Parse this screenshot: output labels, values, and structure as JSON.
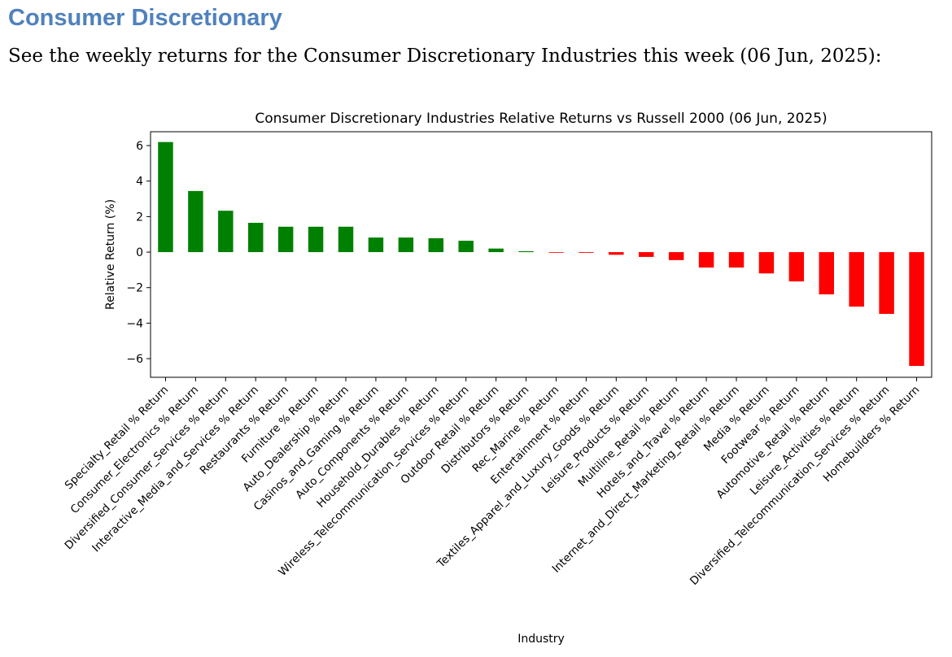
{
  "heading": "Consumer Discretionary",
  "intro": "See the weekly returns for the Consumer Discretionary Industries this week (06 Jun, 2025):",
  "colors": {
    "heading": "#4f81bd",
    "positive": "#008000",
    "negative": "#ff0000"
  },
  "chart_data": {
    "type": "bar",
    "title": "Consumer Discretionary Industries Relative Returns vs Russell 2000 (06 Jun, 2025)",
    "xlabel": "Industry",
    "ylabel": "Relative Return (%)",
    "ylim": [
      -7.05,
      6.78
    ],
    "yticks": [
      -6,
      -4,
      -2,
      0,
      2,
      4,
      6
    ],
    "ytick_labels": [
      "−6",
      "−4",
      "−2",
      "0",
      "2",
      "4",
      "6"
    ],
    "grid": false,
    "categories": [
      "Specialty_Retail % Return",
      "Consumer_Electronics % Return",
      "Diversified_Consumer_Services % Return",
      "Interactive_Media_and_Services % Return",
      "Restaurants % Return",
      "Furniture % Return",
      "Auto_Dealership % Return",
      "Casinos_and_Gaming % Return",
      "Auto_Components % Return",
      "Household_Durables % Return",
      "Wireless_Telecommunication_Services % Return",
      "Outdoor Retail % Return",
      "Distributors % Return",
      "Rec_Marine % Return",
      "Entertainment % Return",
      "Textiles_Apparel_and_Luxury_Goods % Return",
      "Leisure_Products % Return",
      "Multiline_Retail % Return",
      "Hotels_and_Travel % Return",
      "Internet_and_Direct_Marketing_Retail % Return",
      "Media % Return",
      "Footwear % Return",
      "Automotive_Retail % Return",
      "Leisure_Activities % Return",
      "Diversified_Telecommunication_Services % Return",
      "Homebuilders % Return"
    ],
    "values": [
      6.2,
      3.44,
      2.33,
      1.65,
      1.43,
      1.43,
      1.43,
      0.82,
      0.82,
      0.78,
      0.64,
      0.2,
      0.05,
      -0.03,
      -0.04,
      -0.15,
      -0.27,
      -0.45,
      -0.87,
      -0.87,
      -1.2,
      -1.65,
      -2.38,
      -3.07,
      -3.48,
      -6.41
    ]
  }
}
